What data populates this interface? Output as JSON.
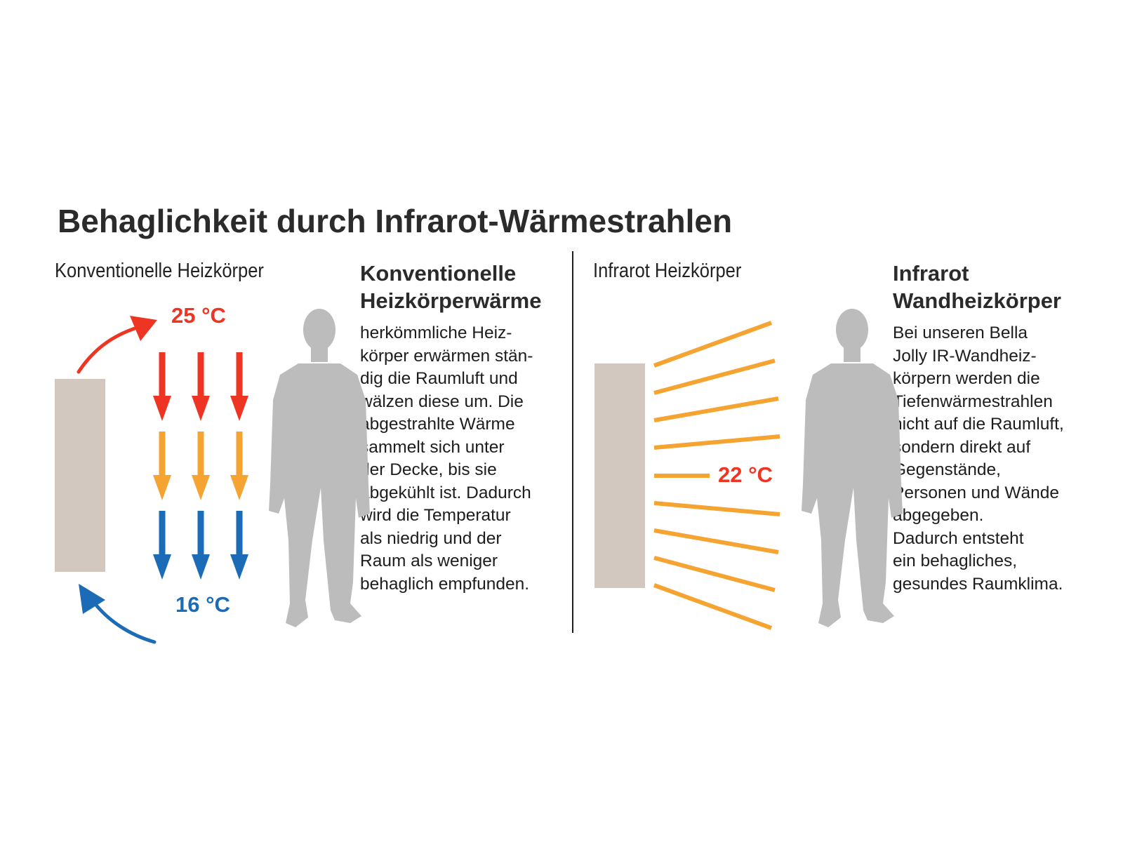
{
  "title": "Behaglichkeit durch Infrarot-Wärmestrahlen",
  "left": {
    "label": "Konventionelle Heizkörper",
    "heading_lines": [
      "Konventionelle",
      "Heizkörperwärme"
    ],
    "body_lines": [
      "herkömmliche Heiz-",
      "körper erwärmen stän-",
      "dig die Raumluft und",
      "wälzen diese um. Die",
      "abgestrahlte Wärme",
      "sammelt sich unter",
      "der Decke, bis sie",
      "abgekühlt ist. Dadurch",
      "wird die Temperatur",
      "als niedrig und der",
      "Raum als weniger",
      "behaglich empfunden."
    ],
    "temp_top": "25 °C",
    "temp_bottom": "16 °C"
  },
  "right": {
    "label": "Infrarot Heizkörper",
    "heading_lines": [
      "Infrarot",
      "Wandheizkörper"
    ],
    "body_lines": [
      "Bei unseren Bella",
      "Jolly IR-Wandheiz-",
      "körpern werden die",
      "Tiefenwärmestrahlen",
      "nicht auf die Raumluft,",
      "sondern direkt auf",
      "Gegenstände,",
      "Personen und Wände",
      "abgegeben.",
      "Dadurch entsteht",
      "ein behagliches,",
      "gesundes Raumklima."
    ],
    "temp": "22 °C"
  },
  "colors": {
    "hot": "#ee3524",
    "warm": "#f5a331",
    "cold": "#1b6bb7",
    "radiator": "#d2c8c0",
    "silhouette": "#bcbcbd",
    "ray": "#f5a331"
  }
}
